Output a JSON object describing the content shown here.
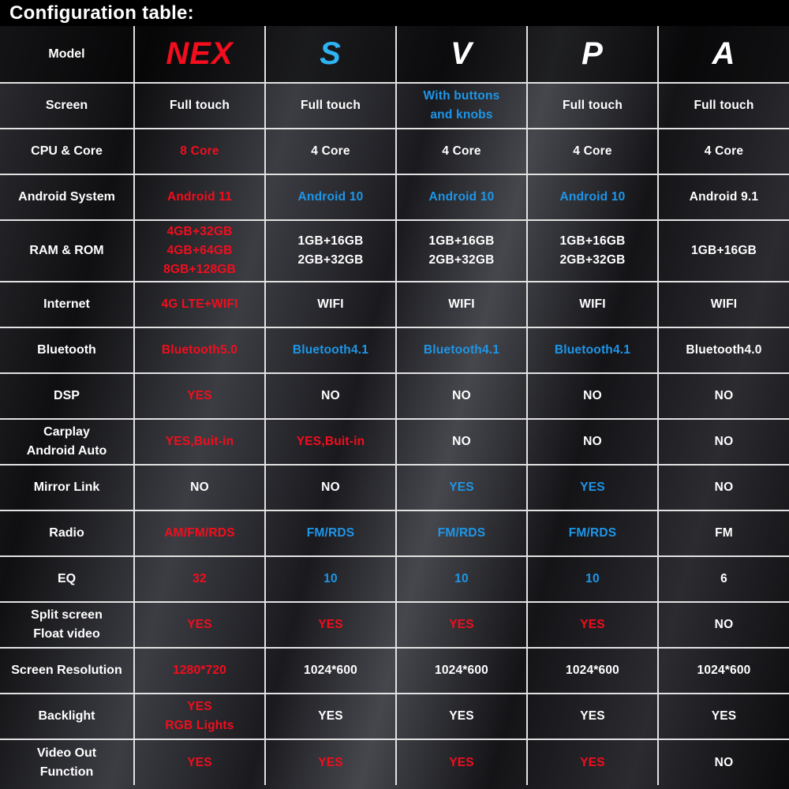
{
  "title": "Configuration table:",
  "colors": {
    "red": "#f30d1d",
    "blue": "#1e96e8",
    "cyan": "#2eb4f2",
    "white": "#ffffff"
  },
  "chart_data": {
    "type": "table",
    "title": "Configuration table:",
    "columns": [
      "Model",
      "NEX",
      "S",
      "V",
      "P",
      "A"
    ],
    "header": {
      "label": "Model",
      "models": [
        {
          "name": "NEX",
          "color": "red"
        },
        {
          "name": "S",
          "color": "cyan"
        },
        {
          "name": "V",
          "color": "white"
        },
        {
          "name": "P",
          "color": "white"
        },
        {
          "name": "A",
          "color": "white"
        }
      ]
    },
    "rows": [
      {
        "key": "screen",
        "label": [
          "Screen"
        ],
        "cells": [
          {
            "lines": [
              "Full touch"
            ],
            "color": "white"
          },
          {
            "lines": [
              "Full touch"
            ],
            "color": "white"
          },
          {
            "lines": [
              "With buttons",
              "and knobs"
            ],
            "color": "blue"
          },
          {
            "lines": [
              "Full touch"
            ],
            "color": "white"
          },
          {
            "lines": [
              "Full touch"
            ],
            "color": "white"
          }
        ]
      },
      {
        "key": "cpu-core",
        "label": [
          "CPU & Core"
        ],
        "cells": [
          {
            "lines": [
              "8 Core"
            ],
            "color": "red"
          },
          {
            "lines": [
              "4 Core"
            ],
            "color": "white"
          },
          {
            "lines": [
              "4 Core"
            ],
            "color": "white"
          },
          {
            "lines": [
              "4 Core"
            ],
            "color": "white"
          },
          {
            "lines": [
              "4 Core"
            ],
            "color": "white"
          }
        ]
      },
      {
        "key": "android-system",
        "label": [
          "Android System"
        ],
        "cells": [
          {
            "lines": [
              "Android 11"
            ],
            "color": "red"
          },
          {
            "lines": [
              "Android 10"
            ],
            "color": "blue"
          },
          {
            "lines": [
              "Android 10"
            ],
            "color": "blue"
          },
          {
            "lines": [
              "Android 10"
            ],
            "color": "blue"
          },
          {
            "lines": [
              "Android 9.1"
            ],
            "color": "white"
          }
        ]
      },
      {
        "key": "ram-rom",
        "label": [
          "RAM & ROM"
        ],
        "tall": true,
        "cells": [
          {
            "lines": [
              "4GB+32GB",
              "4GB+64GB",
              "8GB+128GB"
            ],
            "color": "red"
          },
          {
            "lines": [
              "1GB+16GB",
              "2GB+32GB"
            ],
            "color": "white"
          },
          {
            "lines": [
              "1GB+16GB",
              "2GB+32GB"
            ],
            "color": "white"
          },
          {
            "lines": [
              "1GB+16GB",
              "2GB+32GB"
            ],
            "color": "white"
          },
          {
            "lines": [
              "1GB+16GB"
            ],
            "color": "white"
          }
        ]
      },
      {
        "key": "internet",
        "label": [
          "Internet"
        ],
        "cells": [
          {
            "lines": [
              "4G LTE+WIFI"
            ],
            "color": "red"
          },
          {
            "lines": [
              "WIFI"
            ],
            "color": "white"
          },
          {
            "lines": [
              "WIFI"
            ],
            "color": "white"
          },
          {
            "lines": [
              "WIFI"
            ],
            "color": "white"
          },
          {
            "lines": [
              "WIFI"
            ],
            "color": "white"
          }
        ]
      },
      {
        "key": "bluetooth",
        "label": [
          "Bluetooth"
        ],
        "cells": [
          {
            "lines": [
              "Bluetooth5.0"
            ],
            "color": "red"
          },
          {
            "lines": [
              "Bluetooth4.1"
            ],
            "color": "blue"
          },
          {
            "lines": [
              "Bluetooth4.1"
            ],
            "color": "blue"
          },
          {
            "lines": [
              "Bluetooth4.1"
            ],
            "color": "blue"
          },
          {
            "lines": [
              "Bluetooth4.0"
            ],
            "color": "white"
          }
        ]
      },
      {
        "key": "dsp",
        "label": [
          "DSP"
        ],
        "cells": [
          {
            "lines": [
              "YES"
            ],
            "color": "red"
          },
          {
            "lines": [
              "NO"
            ],
            "color": "white"
          },
          {
            "lines": [
              "NO"
            ],
            "color": "white"
          },
          {
            "lines": [
              "NO"
            ],
            "color": "white"
          },
          {
            "lines": [
              "NO"
            ],
            "color": "white"
          }
        ]
      },
      {
        "key": "carplay-android-auto",
        "label": [
          "Carplay",
          "Android Auto"
        ],
        "cells": [
          {
            "lines": [
              "YES,Buit-in"
            ],
            "color": "red"
          },
          {
            "lines": [
              "YES,Buit-in"
            ],
            "color": "red"
          },
          {
            "lines": [
              "NO"
            ],
            "color": "white"
          },
          {
            "lines": [
              "NO"
            ],
            "color": "white"
          },
          {
            "lines": [
              "NO"
            ],
            "color": "white"
          }
        ]
      },
      {
        "key": "mirror-link",
        "label": [
          "Mirror Link"
        ],
        "cells": [
          {
            "lines": [
              "NO"
            ],
            "color": "white"
          },
          {
            "lines": [
              "NO"
            ],
            "color": "white"
          },
          {
            "lines": [
              "YES"
            ],
            "color": "blue"
          },
          {
            "lines": [
              "YES"
            ],
            "color": "blue"
          },
          {
            "lines": [
              "NO"
            ],
            "color": "white"
          }
        ]
      },
      {
        "key": "radio",
        "label": [
          "Radio"
        ],
        "cells": [
          {
            "lines": [
              "AM/FM/RDS"
            ],
            "color": "red"
          },
          {
            "lines": [
              "FM/RDS"
            ],
            "color": "blue"
          },
          {
            "lines": [
              "FM/RDS"
            ],
            "color": "blue"
          },
          {
            "lines": [
              "FM/RDS"
            ],
            "color": "blue"
          },
          {
            "lines": [
              "FM"
            ],
            "color": "white"
          }
        ]
      },
      {
        "key": "eq",
        "label": [
          "EQ"
        ],
        "cells": [
          {
            "lines": [
              "32"
            ],
            "color": "red"
          },
          {
            "lines": [
              "10"
            ],
            "color": "blue"
          },
          {
            "lines": [
              "10"
            ],
            "color": "blue"
          },
          {
            "lines": [
              "10"
            ],
            "color": "blue"
          },
          {
            "lines": [
              "6"
            ],
            "color": "white"
          }
        ]
      },
      {
        "key": "split-screen-float-video",
        "label": [
          "Split screen",
          "Float video"
        ],
        "cells": [
          {
            "lines": [
              "YES"
            ],
            "color": "red"
          },
          {
            "lines": [
              "YES"
            ],
            "color": "red"
          },
          {
            "lines": [
              "YES"
            ],
            "color": "red"
          },
          {
            "lines": [
              "YES"
            ],
            "color": "red"
          },
          {
            "lines": [
              "NO"
            ],
            "color": "white"
          }
        ]
      },
      {
        "key": "screen-resolution",
        "label": [
          "Screen Resolution"
        ],
        "cells": [
          {
            "lines": [
              "1280*720"
            ],
            "color": "red"
          },
          {
            "lines": [
              "1024*600"
            ],
            "color": "white"
          },
          {
            "lines": [
              "1024*600"
            ],
            "color": "white"
          },
          {
            "lines": [
              "1024*600"
            ],
            "color": "white"
          },
          {
            "lines": [
              "1024*600"
            ],
            "color": "white"
          }
        ]
      },
      {
        "key": "backlight",
        "label": [
          "Backlight"
        ],
        "cells": [
          {
            "lines": [
              "YES",
              "RGB Lights"
            ],
            "color": "red"
          },
          {
            "lines": [
              "YES"
            ],
            "color": "white"
          },
          {
            "lines": [
              "YES"
            ],
            "color": "white"
          },
          {
            "lines": [
              "YES"
            ],
            "color": "white"
          },
          {
            "lines": [
              "YES"
            ],
            "color": "white"
          }
        ]
      },
      {
        "key": "video-out-function",
        "label": [
          "Video Out",
          "Function"
        ],
        "cells": [
          {
            "lines": [
              "YES"
            ],
            "color": "red"
          },
          {
            "lines": [
              "YES"
            ],
            "color": "red"
          },
          {
            "lines": [
              "YES"
            ],
            "color": "red"
          },
          {
            "lines": [
              "YES"
            ],
            "color": "red"
          },
          {
            "lines": [
              "NO"
            ],
            "color": "white"
          }
        ]
      }
    ]
  }
}
